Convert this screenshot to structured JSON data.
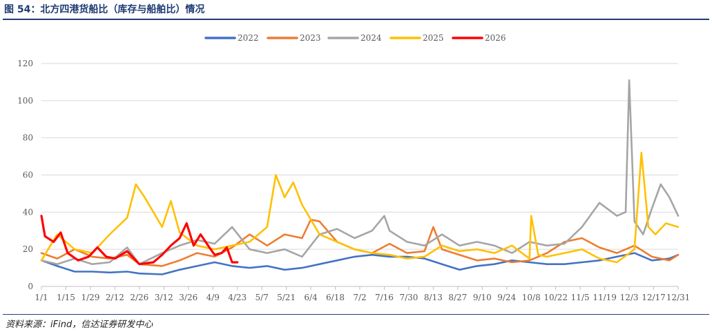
{
  "header": {
    "title": "图 54：北方四港货船比（库存与船舶比）情况"
  },
  "footer": {
    "source": "资料来源：iFind，信达证券研发中心"
  },
  "chart_data": {
    "type": "line",
    "title": "",
    "xlabel": "",
    "ylabel": "",
    "ylim": [
      0,
      120
    ],
    "yticks": [
      0,
      20,
      40,
      60,
      80,
      100,
      120
    ],
    "xlim": [
      1,
      365
    ],
    "x_tick_labels": [
      "1/1",
      "1/15",
      "1/29",
      "2/12",
      "2/26",
      "3/12",
      "3/26",
      "4/9",
      "4/23",
      "5/7",
      "5/21",
      "6/4",
      "6/18",
      "7/2",
      "7/16",
      "7/30",
      "8/13",
      "8/27",
      "9/10",
      "9/24",
      "10/8",
      "10/22",
      "11/5",
      "11/19",
      "12/3",
      "12/17",
      "12/31"
    ],
    "x_tick_days": [
      1,
      15,
      29,
      43,
      57,
      71,
      85,
      99,
      113,
      127,
      141,
      155,
      169,
      183,
      197,
      211,
      225,
      239,
      253,
      267,
      281,
      295,
      309,
      323,
      337,
      351,
      365
    ],
    "grid": "horizontal",
    "legend_position": "top",
    "series": [
      {
        "name": "2022",
        "color": "#4472C4",
        "points": [
          [
            1,
            14
          ],
          [
            10,
            11
          ],
          [
            20,
            8
          ],
          [
            30,
            8
          ],
          [
            40,
            7.5
          ],
          [
            50,
            8
          ],
          [
            57,
            7
          ],
          [
            70,
            6.5
          ],
          [
            80,
            9
          ],
          [
            90,
            11
          ],
          [
            100,
            13
          ],
          [
            110,
            11
          ],
          [
            120,
            10
          ],
          [
            130,
            11
          ],
          [
            140,
            9
          ],
          [
            150,
            10
          ],
          [
            160,
            12
          ],
          [
            170,
            14
          ],
          [
            180,
            16
          ],
          [
            190,
            17
          ],
          [
            200,
            16
          ],
          [
            210,
            16
          ],
          [
            220,
            15
          ],
          [
            230,
            12
          ],
          [
            240,
            9
          ],
          [
            250,
            11
          ],
          [
            260,
            12
          ],
          [
            270,
            14
          ],
          [
            280,
            13
          ],
          [
            290,
            12
          ],
          [
            300,
            12
          ],
          [
            310,
            13
          ],
          [
            320,
            14
          ],
          [
            330,
            16
          ],
          [
            340,
            18
          ],
          [
            350,
            14
          ],
          [
            360,
            15
          ],
          [
            365,
            17
          ]
        ]
      },
      {
        "name": "2023",
        "color": "#ED7D31",
        "points": [
          [
            1,
            18
          ],
          [
            10,
            15
          ],
          [
            20,
            20
          ],
          [
            30,
            16
          ],
          [
            40,
            15
          ],
          [
            50,
            17
          ],
          [
            57,
            12
          ],
          [
            70,
            11
          ],
          [
            80,
            14
          ],
          [
            90,
            18
          ],
          [
            100,
            16
          ],
          [
            110,
            21
          ],
          [
            120,
            28
          ],
          [
            130,
            22
          ],
          [
            140,
            28
          ],
          [
            150,
            26
          ],
          [
            155,
            36
          ],
          [
            160,
            35
          ],
          [
            170,
            24
          ],
          [
            180,
            20
          ],
          [
            190,
            18
          ],
          [
            200,
            23
          ],
          [
            210,
            18
          ],
          [
            220,
            19
          ],
          [
            225,
            32
          ],
          [
            230,
            20
          ],
          [
            240,
            17
          ],
          [
            250,
            14
          ],
          [
            260,
            15
          ],
          [
            270,
            13
          ],
          [
            280,
            14
          ],
          [
            290,
            18
          ],
          [
            300,
            24
          ],
          [
            310,
            26
          ],
          [
            320,
            21
          ],
          [
            330,
            18
          ],
          [
            340,
            22
          ],
          [
            350,
            16
          ],
          [
            360,
            14
          ],
          [
            365,
            17
          ]
        ]
      },
      {
        "name": "2024",
        "color": "#A5A5A5",
        "points": [
          [
            1,
            14
          ],
          [
            10,
            12
          ],
          [
            20,
            15
          ],
          [
            30,
            12
          ],
          [
            40,
            13
          ],
          [
            50,
            21
          ],
          [
            57,
            12
          ],
          [
            70,
            18
          ],
          [
            80,
            22
          ],
          [
            90,
            25
          ],
          [
            100,
            23
          ],
          [
            110,
            32
          ],
          [
            120,
            20
          ],
          [
            130,
            18
          ],
          [
            140,
            20
          ],
          [
            150,
            16
          ],
          [
            160,
            28
          ],
          [
            170,
            31
          ],
          [
            180,
            26
          ],
          [
            190,
            30
          ],
          [
            197,
            38
          ],
          [
            200,
            30
          ],
          [
            210,
            24
          ],
          [
            220,
            22
          ],
          [
            230,
            28
          ],
          [
            240,
            22
          ],
          [
            250,
            24
          ],
          [
            260,
            22
          ],
          [
            270,
            18
          ],
          [
            280,
            24
          ],
          [
            290,
            22
          ],
          [
            300,
            23
          ],
          [
            310,
            32
          ],
          [
            320,
            45
          ],
          [
            330,
            38
          ],
          [
            335,
            40
          ],
          [
            337,
            111
          ],
          [
            340,
            35
          ],
          [
            345,
            28
          ],
          [
            350,
            42
          ],
          [
            355,
            55
          ],
          [
            360,
            48
          ],
          [
            365,
            38
          ]
        ]
      },
      {
        "name": "2025",
        "color": "#FFC000",
        "points": [
          [
            1,
            14
          ],
          [
            10,
            28
          ],
          [
            15,
            24
          ],
          [
            20,
            20
          ],
          [
            30,
            18
          ],
          [
            40,
            28
          ],
          [
            50,
            37
          ],
          [
            55,
            55
          ],
          [
            60,
            48
          ],
          [
            65,
            40
          ],
          [
            70,
            32
          ],
          [
            75,
            46
          ],
          [
            80,
            29
          ],
          [
            90,
            22
          ],
          [
            100,
            20
          ],
          [
            110,
            22
          ],
          [
            120,
            24
          ],
          [
            130,
            32
          ],
          [
            135,
            60
          ],
          [
            140,
            48
          ],
          [
            145,
            56
          ],
          [
            150,
            44
          ],
          [
            155,
            36
          ],
          [
            160,
            28
          ],
          [
            170,
            24
          ],
          [
            180,
            20
          ],
          [
            190,
            18
          ],
          [
            200,
            17
          ],
          [
            210,
            15
          ],
          [
            220,
            16
          ],
          [
            230,
            22
          ],
          [
            240,
            19
          ],
          [
            250,
            20
          ],
          [
            260,
            18
          ],
          [
            270,
            22
          ],
          [
            280,
            15
          ],
          [
            281,
            38
          ],
          [
            285,
            17
          ],
          [
            290,
            16
          ],
          [
            300,
            18
          ],
          [
            310,
            20
          ],
          [
            320,
            15
          ],
          [
            330,
            13
          ],
          [
            340,
            20
          ],
          [
            344,
            72
          ],
          [
            348,
            32
          ],
          [
            352,
            28
          ],
          [
            358,
            34
          ],
          [
            365,
            32
          ]
        ]
      },
      {
        "name": "2026",
        "color": "#FF0000",
        "points": [
          [
            1,
            38
          ],
          [
            3,
            27
          ],
          [
            8,
            24
          ],
          [
            12,
            29
          ],
          [
            16,
            18
          ],
          [
            22,
            14
          ],
          [
            28,
            16
          ],
          [
            33,
            21
          ],
          [
            38,
            16
          ],
          [
            43,
            15
          ],
          [
            50,
            19
          ],
          [
            57,
            12
          ],
          [
            65,
            13
          ],
          [
            70,
            17
          ],
          [
            75,
            22
          ],
          [
            80,
            26
          ],
          [
            84,
            34
          ],
          [
            88,
            22
          ],
          [
            92,
            28
          ],
          [
            97,
            21
          ],
          [
            100,
            17
          ],
          [
            104,
            18
          ],
          [
            107,
            21
          ],
          [
            110,
            13
          ],
          [
            113,
            13
          ]
        ]
      }
    ]
  }
}
